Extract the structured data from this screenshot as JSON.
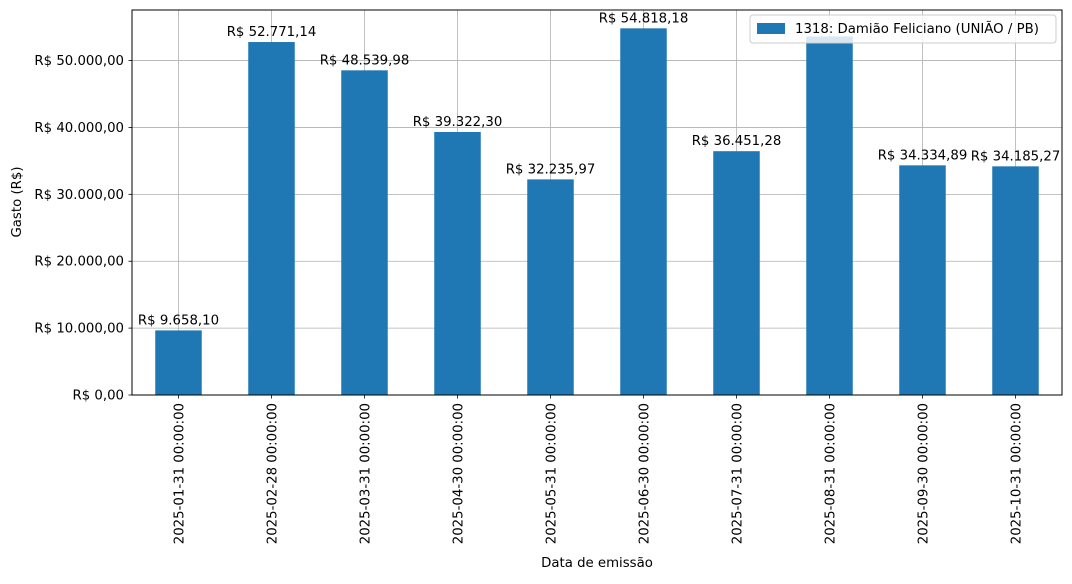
{
  "chart_data": {
    "type": "bar",
    "categories": [
      "2025-01-31 00:00:00",
      "2025-02-28 00:00:00",
      "2025-03-31 00:00:00",
      "2025-04-30 00:00:00",
      "2025-05-31 00:00:00",
      "2025-06-30 00:00:00",
      "2025-07-31 00:00:00",
      "2025-08-31 00:00:00",
      "2025-09-30 00:00:00",
      "2025-10-31 00:00:00"
    ],
    "series": [
      {
        "name": "1318: Damião Feliciano (UNIÃO / PB)",
        "color": "#1f77b4",
        "values": [
          9658.1,
          52771.14,
          48539.98,
          39322.3,
          32235.97,
          54818.18,
          36451.28,
          53600.0,
          34334.89,
          34185.27
        ],
        "labels": [
          "R$ 9.658,10",
          "R$ 52.771,14",
          "R$ 48.539,98",
          "R$ 39.322,30",
          "R$ 32.235,97",
          "R$ 54.818,18",
          "R$ 36.451,28",
          "",
          "R$ 34.334,89",
          "R$ 34.185,27"
        ]
      }
    ],
    "xlabel": "Data de emissão",
    "ylabel": "Gasto (R$)",
    "ylim": [
      0,
      57560
    ],
    "yticks": [
      0,
      10000,
      20000,
      30000,
      40000,
      50000
    ],
    "ytick_labels": [
      "R$ 0,00",
      "R$ 10.000,00",
      "R$ 20.000,00",
      "R$ 30.000,00",
      "R$ 40.000,00",
      "R$ 50.000,00"
    ],
    "grid": true,
    "legend_position": "top-right"
  }
}
